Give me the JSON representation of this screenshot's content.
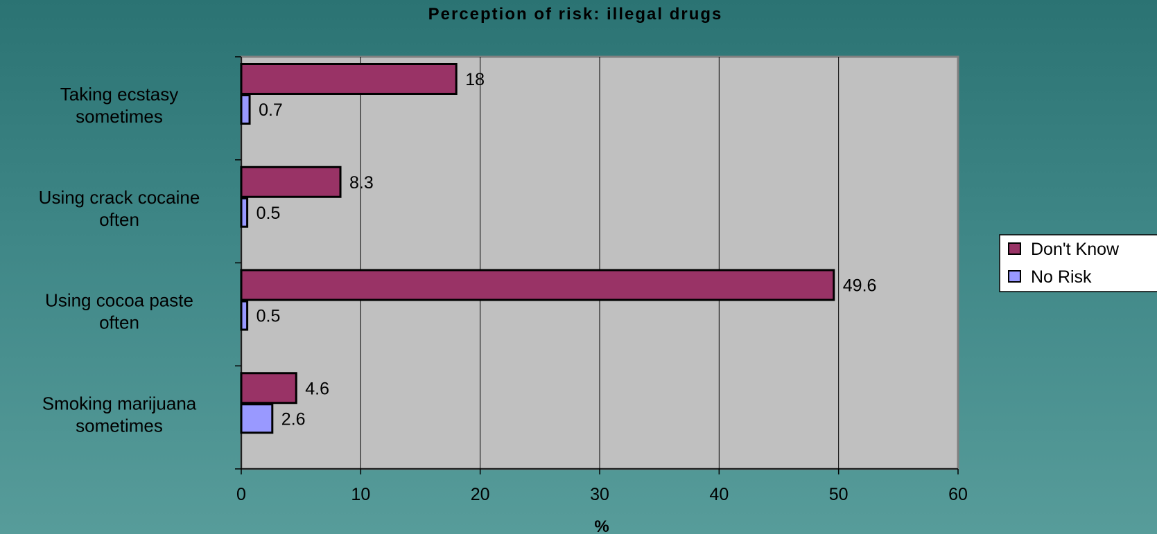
{
  "chart_data": {
    "type": "bar",
    "orientation": "horizontal",
    "title": "Perception of  risk:  illegal drugs",
    "xlabel": "%",
    "ylabel": "",
    "categories": [
      [
        "Taking ecstasy",
        "sometimes"
      ],
      [
        "Using crack cocaine",
        "often"
      ],
      [
        "Using cocoa   paste",
        "often"
      ],
      [
        "Smoking marijuana",
        "sometimes"
      ]
    ],
    "series": [
      {
        "name": "Don't Know",
        "values": [
          18,
          8.3,
          49.6,
          4.6
        ],
        "color": "#993366"
      },
      {
        "name": "No Risk",
        "values": [
          0.7,
          0.5,
          0.5,
          2.6
        ],
        "color": "#9999ff"
      }
    ],
    "value_labels": [
      [
        "18",
        "8.3",
        "49.6",
        "4.6"
      ],
      [
        "0.7",
        "0.5",
        "0.5",
        "2.6"
      ]
    ],
    "xlim": [
      0,
      60
    ],
    "xticks": [
      0,
      10,
      20,
      30,
      40,
      50,
      60
    ],
    "grid": "vertical",
    "legend": "right",
    "plot_background": "#c0c0c0",
    "page_background": "#3a8282"
  }
}
